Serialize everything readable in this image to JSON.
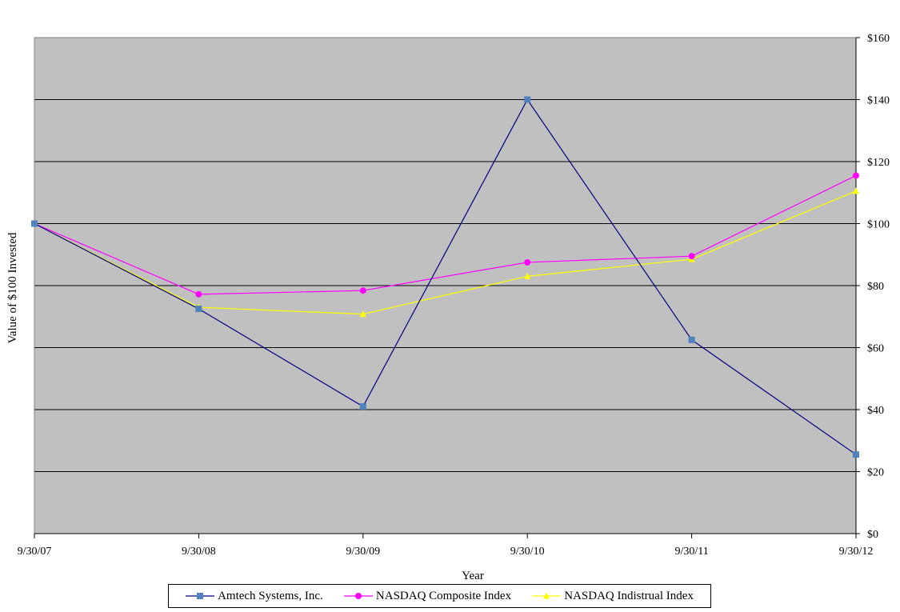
{
  "chart_data": {
    "type": "line",
    "title": "",
    "xlabel": "Year",
    "ylabel": "Value of $100 Invested",
    "categories": [
      "9/30/07",
      "9/30/08",
      "9/30/09",
      "9/30/10",
      "9/30/11",
      "9/30/12"
    ],
    "y_ticks": [
      "$0",
      "$20",
      "$40",
      "$60",
      "$80",
      "$100",
      "$120",
      "$140",
      "$160"
    ],
    "ylim": [
      0,
      160
    ],
    "y_axis_side": "right",
    "grid": true,
    "plot_background": "#c0c0c0",
    "legend_position": "bottom",
    "series": [
      {
        "name": "Amtech Systems, Inc.",
        "values": [
          100,
          72.5,
          41,
          140,
          62.5,
          25.5
        ],
        "line_color": "#000080",
        "marker_color": "#4f81bd",
        "marker": "square"
      },
      {
        "name": "NASDAQ Composite Index",
        "values": [
          100,
          77.2,
          78.4,
          87.5,
          89.5,
          115.5
        ],
        "line_color": "#ff00ff",
        "marker_color": "#ff00ff",
        "marker": "circle"
      },
      {
        "name": "NASDAQ Indistrual Index",
        "values": [
          100,
          73,
          70.8,
          83,
          88.5,
          110.5
        ],
        "line_color": "#ffff00",
        "marker_color": "#ffff00",
        "marker": "triangle"
      }
    ]
  }
}
